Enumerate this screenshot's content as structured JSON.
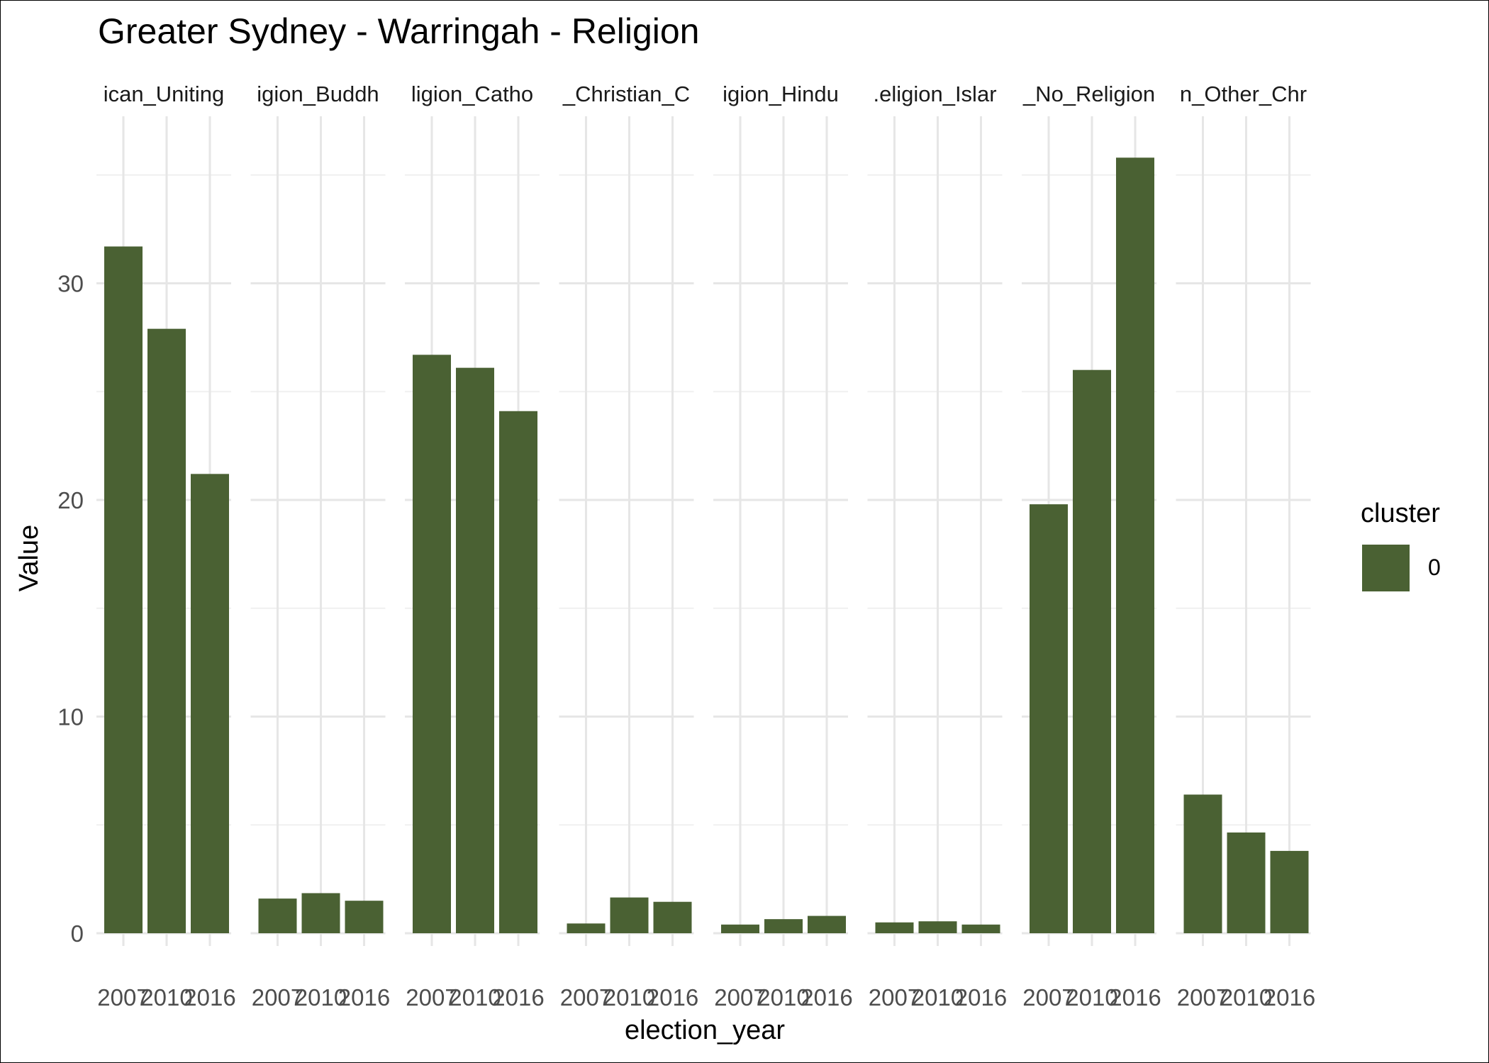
{
  "chart_data": {
    "type": "bar",
    "title": "Greater Sydney - Warringah - Religion",
    "xlabel": "election_year",
    "ylabel": "Value",
    "ylim": [
      0,
      37.5
    ],
    "yticks": [
      0,
      10,
      20,
      30
    ],
    "grid": true,
    "bar_color": "#4a6133",
    "legend": {
      "title": "cluster",
      "entries": [
        "0"
      ],
      "position": "right"
    },
    "categories": [
      "2007",
      "2010",
      "2016"
    ],
    "facets": [
      {
        "label": "ican_Uniting",
        "values": [
          31.7,
          27.9,
          21.2
        ]
      },
      {
        "label": "igion_Buddh",
        "values": [
          1.6,
          1.85,
          1.5
        ]
      },
      {
        "label": "ligion_Catho",
        "values": [
          26.7,
          26.1,
          24.1
        ]
      },
      {
        "label": "_Christian_C",
        "values": [
          0.45,
          1.65,
          1.45
        ]
      },
      {
        "label": "igion_Hindu",
        "values": [
          0.4,
          0.65,
          0.8
        ]
      },
      {
        "label": ".eligion_Islar",
        "values": [
          0.5,
          0.55,
          0.4
        ]
      },
      {
        "label": "_No_Religion",
        "values": [
          19.8,
          26.0,
          35.8
        ]
      },
      {
        "label": "n_Other_Chr",
        "values": [
          6.4,
          4.65,
          3.8
        ]
      }
    ]
  }
}
